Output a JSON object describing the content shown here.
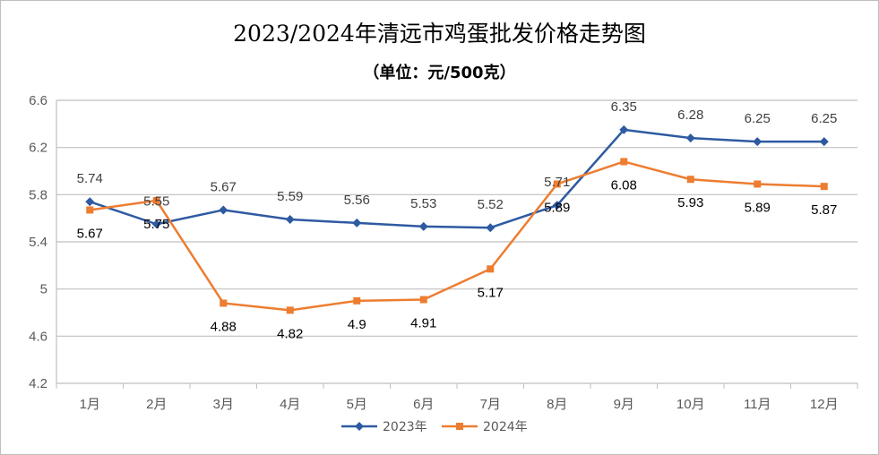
{
  "chart_data": {
    "type": "line",
    "title": "2023/2024年清远市鸡蛋批发价格走势图",
    "subtitle": "（单位：元/500克）",
    "categories": [
      "1月",
      "2月",
      "3月",
      "4月",
      "5月",
      "6月",
      "7月",
      "8月",
      "9月",
      "10月",
      "11月",
      "12月"
    ],
    "y_ticks": [
      "6.6",
      "6.2",
      "5.8",
      "5.4",
      "5",
      "4.6",
      "4.2"
    ],
    "ylim": [
      4.2,
      6.6
    ],
    "grid": true,
    "legend_position": "bottom",
    "series": [
      {
        "name": "2023年",
        "color": "#2e5aa1",
        "marker": "diamond",
        "values": [
          5.74,
          5.55,
          5.67,
          5.59,
          5.56,
          5.53,
          5.52,
          5.71,
          6.35,
          6.28,
          6.25,
          6.25
        ],
        "labels": [
          "5.74",
          "5.55",
          "5.67",
          "5.59",
          "5.56",
          "5.53",
          "5.52",
          "5.71",
          "6.35",
          "6.28",
          "6.25",
          "6.25"
        ]
      },
      {
        "name": "2024年",
        "color": "#ed7d31",
        "marker": "square",
        "values": [
          5.67,
          5.75,
          4.88,
          4.82,
          4.9,
          4.91,
          5.17,
          5.89,
          6.08,
          5.93,
          5.89,
          5.87
        ],
        "labels": [
          "5.67",
          "5.75",
          "4.88",
          "4.82",
          "4.9",
          "4.91",
          "5.17",
          "5.89",
          "6.08",
          "5.93",
          "5.89",
          "5.87"
        ]
      }
    ]
  }
}
